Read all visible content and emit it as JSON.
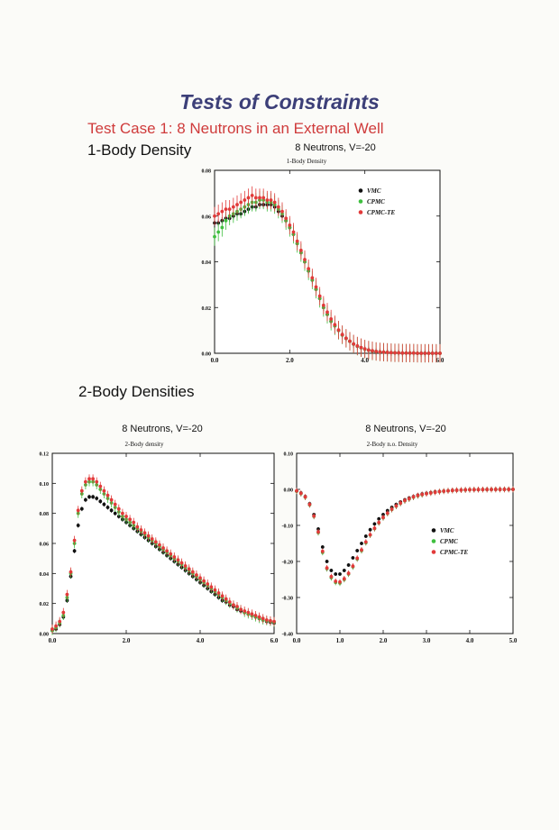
{
  "page": {
    "title": "Tests of  Constraints",
    "subtitle": "Test Case 1:  8 Neutrons in an External Well",
    "section1": "1-Body Density",
    "section2": "2-Body Densities"
  },
  "colors": {
    "VMC": "#111111",
    "CPMC": "#3fbf3f",
    "CPMC-TE": "#e23a3a"
  },
  "chart_data": [
    {
      "type": "scatter",
      "title": "8 Neutrons, V=-20",
      "subtitle": "1-Body Density",
      "xlim": [
        0,
        6
      ],
      "ylim": [
        0,
        0.08
      ],
      "xticks": [
        "0.0",
        "2.0",
        "4.0",
        "6.0"
      ],
      "yticks": [
        "0.00",
        "0.02",
        "0.04",
        "0.06",
        "0.08"
      ],
      "legend": "top-right",
      "x": [
        0.0,
        0.1,
        0.2,
        0.3,
        0.4,
        0.5,
        0.6,
        0.7,
        0.8,
        0.9,
        1.0,
        1.1,
        1.2,
        1.3,
        1.4,
        1.5,
        1.6,
        1.7,
        1.8,
        1.9,
        2.0,
        2.1,
        2.2,
        2.3,
        2.4,
        2.5,
        2.6,
        2.7,
        2.8,
        2.9,
        3.0,
        3.1,
        3.2,
        3.3,
        3.4,
        3.5,
        3.6,
        3.7,
        3.8,
        3.9,
        4.0,
        4.1,
        4.2,
        4.3,
        4.4,
        4.5,
        4.6,
        4.7,
        4.8,
        4.9,
        5.0,
        5.1,
        5.2,
        5.3,
        5.4,
        5.5,
        5.6,
        5.7,
        5.8,
        5.9,
        6.0
      ],
      "series": [
        {
          "name": "VMC",
          "err": 0.0015,
          "values": [
            0.057,
            0.057,
            0.058,
            0.059,
            0.059,
            0.06,
            0.061,
            0.061,
            0.062,
            0.063,
            0.064,
            0.064,
            0.065,
            0.065,
            0.065,
            0.065,
            0.064,
            0.062,
            0.06,
            0.058,
            0.055,
            0.052,
            0.048,
            0.044,
            0.04,
            0.036,
            0.032,
            0.028,
            0.024,
            0.02,
            0.017,
            0.014,
            0.012,
            0.01,
            0.008,
            0.0065,
            0.0052,
            0.004,
            0.0031,
            0.0024,
            0.0018,
            0.0014,
            0.001,
            0.0008,
            0.0006,
            0.0005,
            0.0004,
            0.0003,
            0.0002,
            0.0002,
            0.0001,
            0.0001,
            0.0001,
            0.0001,
            0.0,
            0.0,
            0.0,
            0.0,
            0.0,
            0.0,
            0.0
          ]
        },
        {
          "name": "CPMC",
          "err": 0.004,
          "values": [
            0.051,
            0.053,
            0.055,
            0.058,
            0.06,
            0.061,
            0.062,
            0.063,
            0.064,
            0.065,
            0.066,
            0.066,
            0.067,
            0.067,
            0.066,
            0.066,
            0.065,
            0.063,
            0.061,
            0.058,
            0.055,
            0.052,
            0.048,
            0.044,
            0.04,
            0.036,
            0.032,
            0.028,
            0.024,
            0.02,
            0.017,
            0.014,
            0.012,
            0.01,
            0.008,
            0.0065,
            0.0052,
            0.004,
            0.0031,
            0.0024,
            0.0018,
            0.0014,
            0.001,
            0.0008,
            0.0006,
            0.0005,
            0.0004,
            0.0003,
            0.0002,
            0.0002,
            0.0001,
            0.0001,
            0.0001,
            0.0001,
            0.0,
            0.0,
            0.0,
            0.0,
            0.0,
            0.0,
            0.0
          ]
        },
        {
          "name": "CPMC-TE",
          "err": 0.004,
          "values": [
            0.06,
            0.061,
            0.062,
            0.063,
            0.063,
            0.064,
            0.065,
            0.066,
            0.067,
            0.068,
            0.069,
            0.068,
            0.068,
            0.068,
            0.067,
            0.067,
            0.066,
            0.064,
            0.062,
            0.059,
            0.056,
            0.053,
            0.049,
            0.045,
            0.041,
            0.037,
            0.033,
            0.029,
            0.025,
            0.021,
            0.018,
            0.015,
            0.0125,
            0.0102,
            0.0082,
            0.0066,
            0.0053,
            0.0041,
            0.0032,
            0.0025,
            0.0019,
            0.0014,
            0.0011,
            0.0008,
            0.0006,
            0.0005,
            0.0004,
            0.0003,
            0.0002,
            0.0002,
            0.0001,
            0.0001,
            0.0001,
            0.0001,
            0.0,
            0.0,
            0.0,
            0.0,
            0.0,
            0.0,
            0.0
          ]
        }
      ]
    },
    {
      "type": "scatter",
      "title": "8 Neutrons, V=-20",
      "subtitle": "2-Body density",
      "xlim": [
        0,
        6
      ],
      "ylim": [
        0,
        0.12
      ],
      "xticks": [
        "0.0",
        "2.0",
        "4.0",
        "6.0"
      ],
      "yticks": [
        "0.00",
        "0.02",
        "0.04",
        "0.06",
        "0.08",
        "0.10",
        "0.12"
      ],
      "x": [
        0.0,
        0.1,
        0.2,
        0.3,
        0.4,
        0.5,
        0.6,
        0.7,
        0.8,
        0.9,
        1.0,
        1.1,
        1.2,
        1.3,
        1.4,
        1.5,
        1.6,
        1.7,
        1.8,
        1.9,
        2.0,
        2.1,
        2.2,
        2.3,
        2.4,
        2.5,
        2.6,
        2.7,
        2.8,
        2.9,
        3.0,
        3.1,
        3.2,
        3.3,
        3.4,
        3.5,
        3.6,
        3.7,
        3.8,
        3.9,
        4.0,
        4.1,
        4.2,
        4.3,
        4.4,
        4.5,
        4.6,
        4.7,
        4.8,
        4.9,
        5.0,
        5.1,
        5.2,
        5.3,
        5.4,
        5.5,
        5.6,
        5.7,
        5.8,
        5.9,
        6.0
      ],
      "series": [
        {
          "name": "VMC",
          "err": 0.0015,
          "values": [
            0.002,
            0.003,
            0.006,
            0.011,
            0.022,
            0.038,
            0.055,
            0.072,
            0.083,
            0.089,
            0.091,
            0.091,
            0.09,
            0.088,
            0.086,
            0.084,
            0.082,
            0.08,
            0.078,
            0.076,
            0.074,
            0.072,
            0.07,
            0.068,
            0.066,
            0.064,
            0.062,
            0.06,
            0.058,
            0.056,
            0.054,
            0.052,
            0.05,
            0.048,
            0.046,
            0.044,
            0.042,
            0.04,
            0.038,
            0.036,
            0.034,
            0.032,
            0.03,
            0.028,
            0.026,
            0.024,
            0.022,
            0.021,
            0.019,
            0.018,
            0.016,
            0.015,
            0.014,
            0.013,
            0.012,
            0.011,
            0.01,
            0.009,
            0.008,
            0.0075,
            0.007
          ]
        },
        {
          "name": "CPMC",
          "err": 0.003,
          "values": [
            0.002,
            0.004,
            0.007,
            0.012,
            0.024,
            0.04,
            0.06,
            0.08,
            0.093,
            0.099,
            0.101,
            0.101,
            0.099,
            0.096,
            0.093,
            0.09,
            0.087,
            0.084,
            0.081,
            0.078,
            0.076,
            0.074,
            0.072,
            0.07,
            0.068,
            0.066,
            0.064,
            0.062,
            0.06,
            0.058,
            0.056,
            0.054,
            0.052,
            0.05,
            0.048,
            0.046,
            0.044,
            0.042,
            0.04,
            0.038,
            0.036,
            0.034,
            0.032,
            0.03,
            0.028,
            0.026,
            0.024,
            0.022,
            0.02,
            0.019,
            0.017,
            0.016,
            0.014,
            0.013,
            0.012,
            0.011,
            0.01,
            0.009,
            0.0085,
            0.008,
            0.0075
          ]
        },
        {
          "name": "CPMC-TE",
          "err": 0.003,
          "values": [
            0.003,
            0.005,
            0.008,
            0.014,
            0.026,
            0.041,
            0.062,
            0.082,
            0.095,
            0.101,
            0.103,
            0.103,
            0.101,
            0.098,
            0.095,
            0.092,
            0.089,
            0.086,
            0.083,
            0.08,
            0.078,
            0.076,
            0.074,
            0.071,
            0.069,
            0.067,
            0.065,
            0.063,
            0.061,
            0.059,
            0.057,
            0.055,
            0.053,
            0.051,
            0.049,
            0.047,
            0.045,
            0.043,
            0.041,
            0.039,
            0.037,
            0.035,
            0.033,
            0.031,
            0.029,
            0.027,
            0.025,
            0.023,
            0.021,
            0.019,
            0.018,
            0.016,
            0.015,
            0.014,
            0.013,
            0.012,
            0.011,
            0.01,
            0.009,
            0.0085,
            0.008
          ]
        }
      ]
    },
    {
      "type": "scatter",
      "title": "8 Neutrons, V=-20",
      "subtitle": "2-Body n.o. Density",
      "xlim": [
        0,
        5
      ],
      "ylim": [
        -0.4,
        0.1
      ],
      "xticks": [
        "0.0",
        "1.0",
        "2.0",
        "3.0",
        "4.0",
        "5.0"
      ],
      "yticks": [
        "-0.40",
        "-0.30",
        "-0.20",
        "-0.10",
        "0.00",
        "0.10"
      ],
      "legend": "right",
      "x": [
        0.0,
        0.1,
        0.2,
        0.3,
        0.4,
        0.5,
        0.6,
        0.7,
        0.8,
        0.9,
        1.0,
        1.1,
        1.2,
        1.3,
        1.4,
        1.5,
        1.6,
        1.7,
        1.8,
        1.9,
        2.0,
        2.1,
        2.2,
        2.3,
        2.4,
        2.5,
        2.6,
        2.7,
        2.8,
        2.9,
        3.0,
        3.1,
        3.2,
        3.3,
        3.4,
        3.5,
        3.6,
        3.7,
        3.8,
        3.9,
        4.0,
        4.1,
        4.2,
        4.3,
        4.4,
        4.5,
        4.6,
        4.7,
        4.8,
        4.9,
        5.0
      ],
      "series": [
        {
          "name": "VMC",
          "err": 0.005,
          "values": [
            -0.005,
            -0.01,
            -0.02,
            -0.04,
            -0.07,
            -0.11,
            -0.16,
            -0.2,
            -0.225,
            -0.235,
            -0.235,
            -0.225,
            -0.21,
            -0.19,
            -0.17,
            -0.15,
            -0.13,
            -0.112,
            -0.096,
            -0.082,
            -0.07,
            -0.059,
            -0.05,
            -0.042,
            -0.035,
            -0.029,
            -0.024,
            -0.02,
            -0.016,
            -0.013,
            -0.011,
            -0.009,
            -0.007,
            -0.006,
            -0.005,
            -0.004,
            -0.003,
            -0.0025,
            -0.002,
            -0.0015,
            -0.001,
            -0.001,
            -0.0008,
            -0.0006,
            -0.0005,
            -0.0004,
            -0.0003,
            -0.0002,
            -0.0002,
            -0.0001,
            -0.0001
          ]
        },
        {
          "name": "CPMC",
          "err": 0.008,
          "values": [
            -0.005,
            -0.012,
            -0.022,
            -0.043,
            -0.075,
            -0.12,
            -0.175,
            -0.22,
            -0.245,
            -0.258,
            -0.26,
            -0.25,
            -0.235,
            -0.215,
            -0.193,
            -0.17,
            -0.148,
            -0.127,
            -0.109,
            -0.093,
            -0.079,
            -0.067,
            -0.056,
            -0.047,
            -0.039,
            -0.032,
            -0.027,
            -0.022,
            -0.018,
            -0.015,
            -0.012,
            -0.01,
            -0.008,
            -0.0065,
            -0.005,
            -0.004,
            -0.0032,
            -0.0025,
            -0.002,
            -0.0015,
            -0.001,
            -0.0008,
            -0.0006,
            -0.0005,
            -0.0004,
            -0.0003,
            -0.0002,
            -0.0002,
            -0.0001,
            -0.0001,
            0.0
          ]
        },
        {
          "name": "CPMC-TE",
          "err": 0.008,
          "values": [
            -0.004,
            -0.011,
            -0.021,
            -0.042,
            -0.074,
            -0.118,
            -0.172,
            -0.218,
            -0.242,
            -0.255,
            -0.257,
            -0.248,
            -0.233,
            -0.213,
            -0.191,
            -0.168,
            -0.146,
            -0.126,
            -0.108,
            -0.092,
            -0.078,
            -0.066,
            -0.055,
            -0.046,
            -0.038,
            -0.031,
            -0.026,
            -0.021,
            -0.017,
            -0.014,
            -0.012,
            -0.01,
            -0.008,
            -0.0063,
            -0.005,
            -0.004,
            -0.003,
            -0.0024,
            -0.0019,
            -0.0014,
            -0.001,
            -0.0008,
            -0.0006,
            -0.0005,
            -0.0004,
            -0.0003,
            -0.0002,
            -0.0002,
            -0.0001,
            -0.0001,
            0.0
          ]
        }
      ]
    }
  ]
}
